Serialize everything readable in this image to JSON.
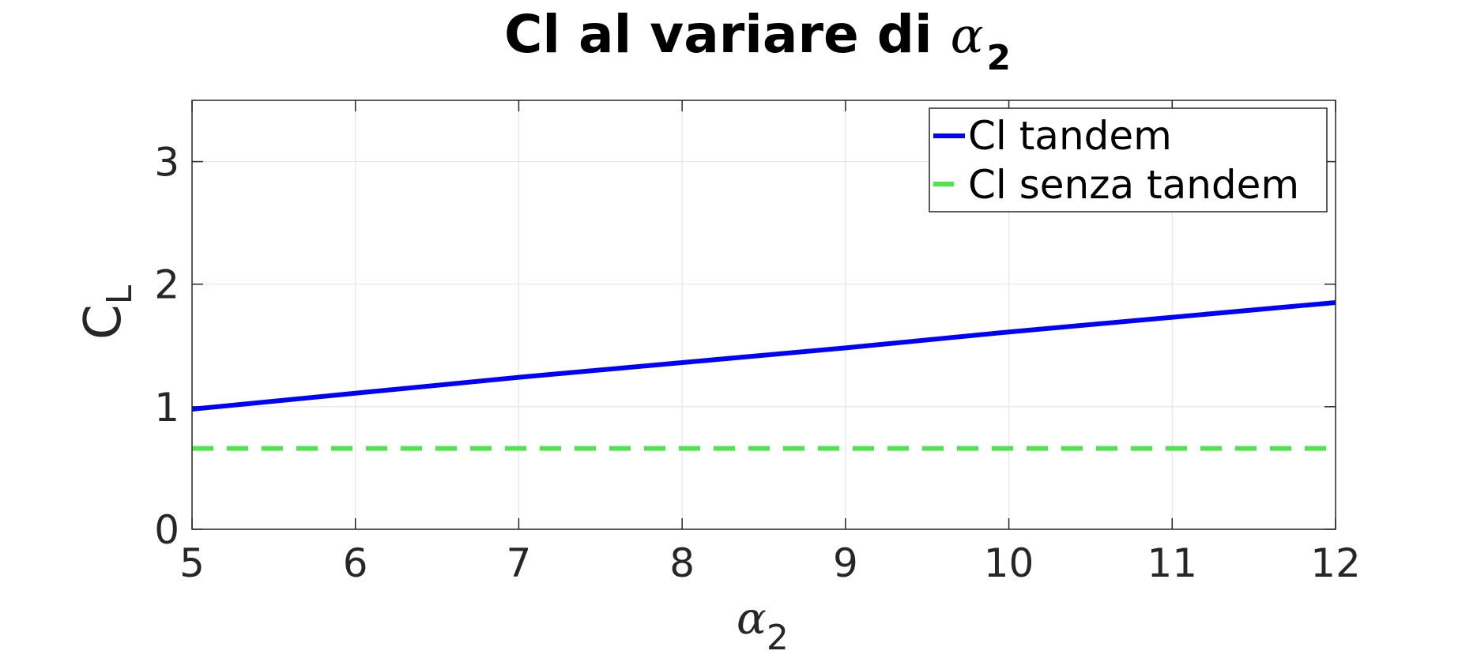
{
  "chart_data": {
    "type": "line",
    "title": {
      "text": "Cl al variare di ",
      "symbol": "α",
      "subscript": "2"
    },
    "xlabel": {
      "symbol": "α",
      "subscript": "2"
    },
    "ylabel": {
      "text": "C",
      "subscript": "L"
    },
    "xlim": [
      5,
      12
    ],
    "ylim": [
      0,
      3.5
    ],
    "xticks": [
      5,
      6,
      7,
      8,
      9,
      10,
      11,
      12
    ],
    "yticks": [
      0,
      1,
      2,
      3
    ],
    "grid": true,
    "legend_position": "top-right",
    "series": [
      {
        "name": "Cl tandem",
        "color": "#0000ff",
        "style": "solid",
        "x": [
          5,
          6,
          7,
          8,
          9,
          10,
          11,
          12
        ],
        "y": [
          0.98,
          1.11,
          1.24,
          1.36,
          1.48,
          1.61,
          1.73,
          1.85
        ]
      },
      {
        "name": "Cl senza tandem",
        "color": "#4de64d",
        "style": "dashed",
        "x": [
          5,
          12
        ],
        "y": [
          0.66,
          0.66
        ]
      }
    ]
  }
}
